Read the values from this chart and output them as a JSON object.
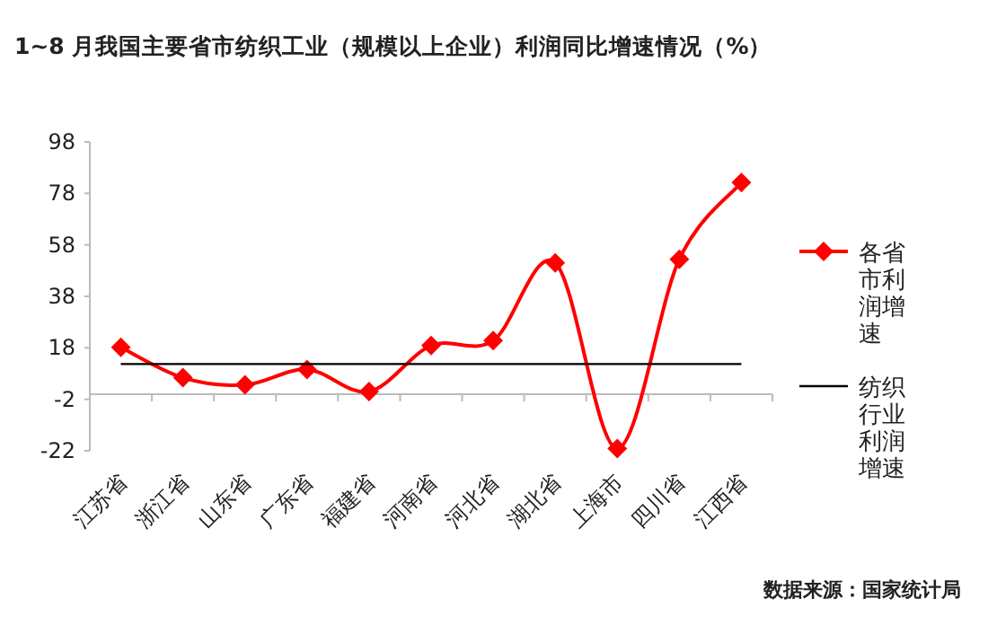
{
  "chart_data": {
    "type": "line",
    "title": "1~8 月我国主要省市纺织工业（规模以上企业）利润同比增速情况（%）",
    "categories": [
      "江苏省",
      "浙江省",
      "山东省",
      "广东省",
      "福建省",
      "河南省",
      "河北省",
      "湖北省",
      "上海市",
      "四川省",
      "江西省"
    ],
    "series": [
      {
        "name": "各省市利润增速",
        "color": "#ff0000",
        "marker": "diamond",
        "values": [
          18.2,
          6.4,
          3.6,
          9.6,
          1.0,
          18.9,
          20.8,
          51.0,
          -21.1,
          52.4,
          82.2
        ]
      },
      {
        "name": "纺织行业利润增速",
        "color": "#000000",
        "marker": "none",
        "values": [
          11.7,
          11.7,
          11.7,
          11.7,
          11.7,
          11.7,
          11.7,
          11.7,
          11.7,
          11.7,
          11.7
        ]
      }
    ],
    "ylim": [
      -22,
      98
    ],
    "yticks": [
      -22,
      -2,
      18,
      38,
      58,
      78,
      98
    ],
    "legend": "right",
    "grid": false,
    "annotations": [
      "数据来源：国家统计局"
    ]
  }
}
